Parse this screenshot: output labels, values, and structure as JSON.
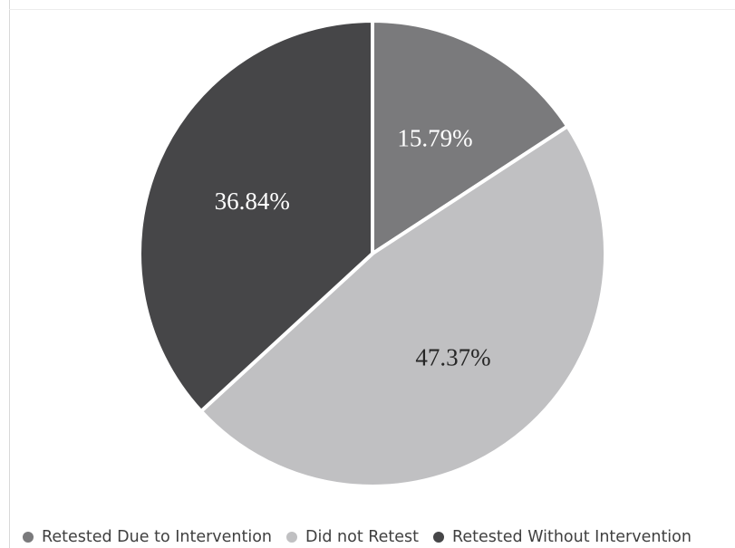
{
  "chart_data": {
    "type": "pie",
    "categories": [
      "Retested Due to Intervention",
      "Did not Retest",
      "Retested Without Intervention"
    ],
    "values": [
      15.79,
      47.37,
      36.84
    ],
    "labels": [
      "15.79%",
      "47.37%",
      "36.84%"
    ],
    "colors": [
      "#7a7a7c",
      "#c0c0c2",
      "#464648"
    ],
    "label_colors": [
      "#ffffff",
      "#262626",
      "#ffffff"
    ],
    "start_angle_deg": 0,
    "direction": "clockwise",
    "legend_position": "bottom",
    "title": ""
  }
}
